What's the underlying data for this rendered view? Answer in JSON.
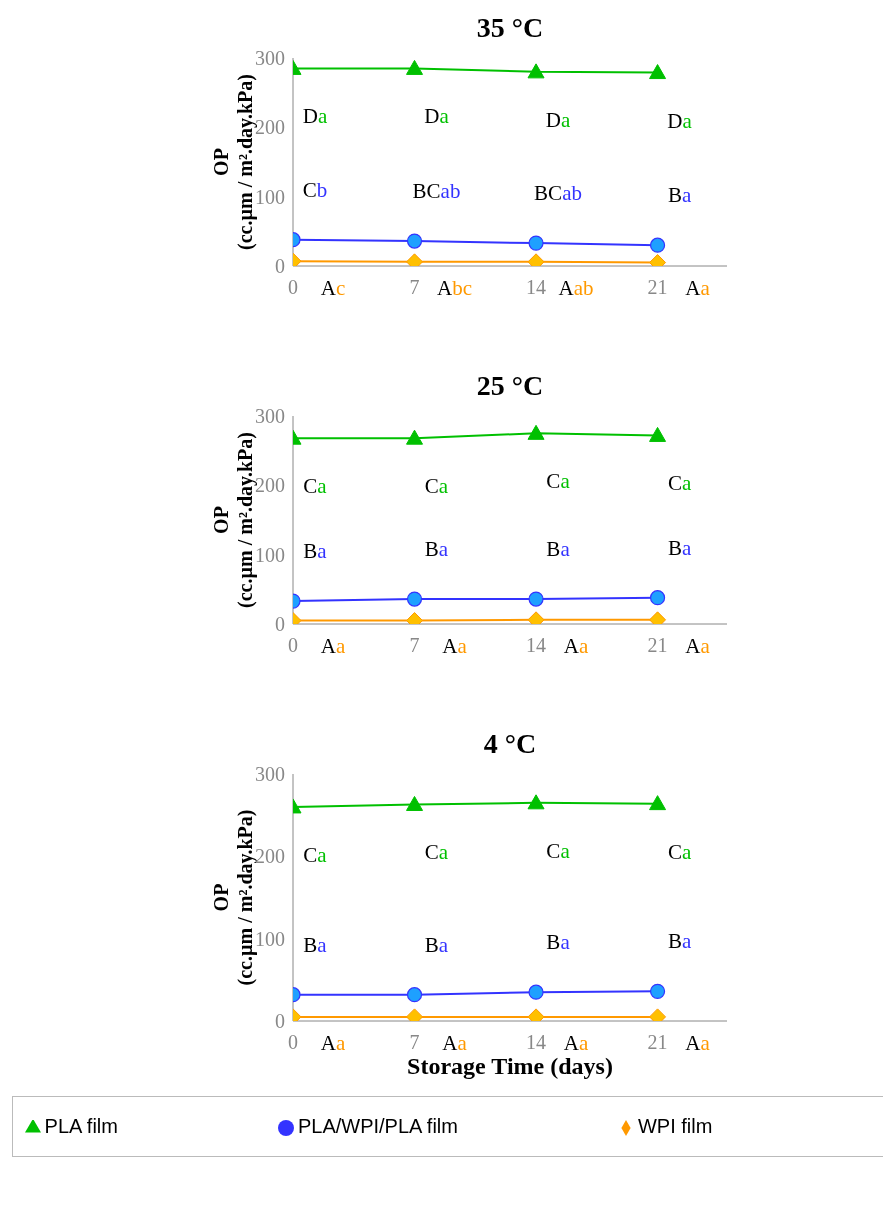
{
  "chart_data": [
    {
      "type": "line",
      "title": "35 °C",
      "ylabel": "OP\n(cc.µm / m².day.kPa)",
      "x": [
        0,
        7,
        14,
        21
      ],
      "xlim": [
        0,
        25
      ],
      "xticks": [
        0,
        7,
        14,
        21
      ],
      "ylim": [
        0,
        300
      ],
      "yticks": [
        0,
        100,
        200,
        300
      ],
      "grid": false,
      "legend": false,
      "series": [
        {
          "color": "#00c000",
          "marker": "triangle",
          "values": [
            285,
            285,
            280,
            279
          ]
        },
        {
          "color": "#3333ff",
          "marker": "circle",
          "values": [
            38,
            36,
            33,
            30
          ]
        },
        {
          "color": "#ff9900",
          "marker": "diamond",
          "values": [
            7,
            6,
            6,
            5
          ]
        }
      ],
      "annotations": [
        "Da",
        "Da",
        "Da",
        "Da",
        "Cb",
        "BCab",
        "BCab",
        "Ba",
        "Ac",
        "Abc",
        "Aab",
        "Aa"
      ]
    },
    {
      "type": "line",
      "title": "25 °C",
      "ylabel": "OP\n(cc.µm / m².day.kPa)",
      "x": [
        0,
        7,
        14,
        21
      ],
      "xlim": [
        0,
        25
      ],
      "xticks": [
        0,
        7,
        14,
        21
      ],
      "ylim": [
        0,
        300
      ],
      "yticks": [
        0,
        100,
        200,
        300
      ],
      "grid": false,
      "legend": false,
      "series": [
        {
          "color": "#00c000",
          "marker": "triangle",
          "values": [
            268,
            268,
            275,
            272
          ]
        },
        {
          "color": "#3333ff",
          "marker": "circle",
          "values": [
            33,
            36,
            36,
            38
          ]
        },
        {
          "color": "#ff9900",
          "marker": "diamond",
          "values": [
            5,
            5,
            6,
            6
          ]
        }
      ],
      "annotations": [
        "Ca",
        "Ca",
        "Ca",
        "Ca",
        "Ba",
        "Ba",
        "Ba",
        "Ba",
        "Aa",
        "Aa",
        "Aa",
        "Aa"
      ]
    },
    {
      "type": "line",
      "title": "4 °C",
      "ylabel": "OP\n(cc.µm / m².day.kPa)",
      "xlabel": "Storage Time (days)",
      "x": [
        0,
        7,
        14,
        21
      ],
      "xlim": [
        0,
        25
      ],
      "xticks": [
        0,
        7,
        14,
        21
      ],
      "ylim": [
        0,
        300
      ],
      "yticks": [
        0,
        100,
        200,
        300
      ],
      "grid": false,
      "legend": "bottom",
      "series": [
        {
          "name": "PLA film",
          "color": "#00c000",
          "marker": "triangle",
          "values": [
            260,
            263,
            265,
            264
          ]
        },
        {
          "name": "PLA/WPI/PLA film",
          "color": "#3333ff",
          "marker": "circle",
          "values": [
            32,
            32,
            35,
            36
          ]
        },
        {
          "name": "WPI film",
          "color": "#ff9900",
          "marker": "diamond",
          "values": [
            5,
            5,
            5,
            5
          ]
        }
      ],
      "annotations": [
        "Ca",
        "Ca",
        "Ca",
        "Ca",
        "Ba",
        "Ba",
        "Ba",
        "Ba",
        "Aa",
        "Aa",
        "Aa",
        "Aa"
      ]
    }
  ]
}
